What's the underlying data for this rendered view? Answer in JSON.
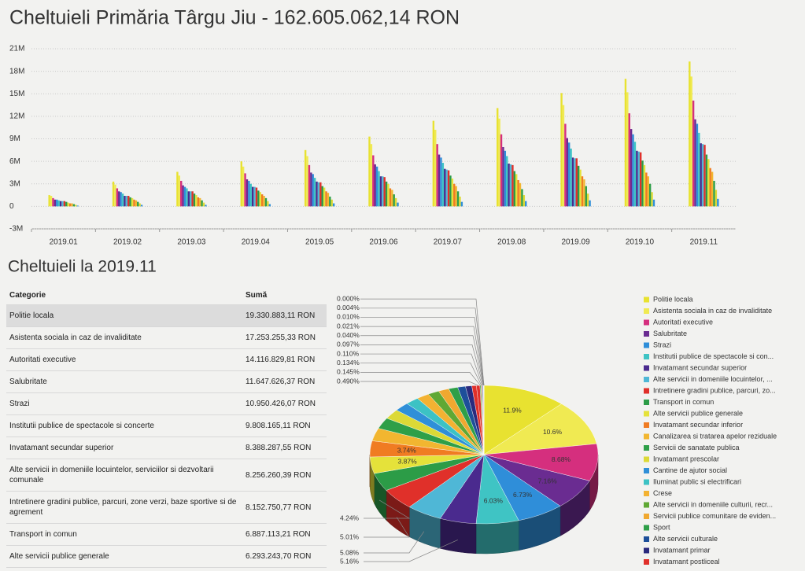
{
  "title": "Cheltuieli Primăria Târgu Jiu - 162.605.062,14 RON",
  "section_title": "Cheltuieli la 2019.11",
  "table": {
    "columns": [
      "Categorie",
      "Sumă"
    ],
    "rows": [
      [
        "Politie locala",
        "19.330.883,11 RON"
      ],
      [
        "Asistenta sociala in caz de invaliditate",
        "17.253.255,33 RON"
      ],
      [
        "Autoritati executive",
        "14.116.829,81 RON"
      ],
      [
        "Salubritate",
        "11.647.626,37 RON"
      ],
      [
        "Strazi",
        "10.950.426,07 RON"
      ],
      [
        "Institutii publice de spectacole si concerte",
        "9.808.165,11 RON"
      ],
      [
        "Invatamant secundar superior",
        "8.388.287,55 RON"
      ],
      [
        "Alte servicii in domeniile locuintelor, serviciilor si dezvoltarii comunale",
        "8.256.260,39 RON"
      ],
      [
        "Intretinere gradini publice, parcuri, zone verzi, baze sportive si de agrement",
        "8.152.750,77 RON"
      ],
      [
        "Transport in comun",
        "6.887.113,21 RON"
      ],
      [
        "Alte servicii publice generale",
        "6.293.243,70 RON"
      ]
    ]
  },
  "chart_data": [
    {
      "type": "bar",
      "categories": [
        "2019.01",
        "2019.02",
        "2019.03",
        "2019.04",
        "2019.05",
        "2019.06",
        "2019.07",
        "2019.08",
        "2019.09",
        "2019.10",
        "2019.11"
      ],
      "ylim": [
        -3000000.0,
        21000000.0
      ],
      "yticks": [
        {
          "value": -3000000.0,
          "label": "-3M"
        },
        0,
        {
          "value": 3000000.0,
          "label": "3M"
        },
        {
          "value": 6000000.0,
          "label": "6M"
        },
        {
          "value": 9000000.0,
          "label": "9M"
        },
        {
          "value": 12000000.0,
          "label": "12M"
        },
        {
          "value": 15000000.0,
          "label": "15M"
        },
        {
          "value": 18000000.0,
          "label": "18M"
        },
        {
          "value": 21000000.0,
          "label": "21M"
        }
      ],
      "grid": true,
      "series": [
        {
          "color": "#e8e230",
          "values": [
            1500000.0,
            3300000.0,
            4600000.0,
            6000000.0,
            7500000.0,
            9300000.0,
            11400000.0,
            13100000.0,
            15100000.0,
            17000000.0,
            19300000.0
          ]
        },
        {
          "color": "#f0ea52",
          "values": [
            1400000.0,
            2900000.0,
            4100000.0,
            5300000.0,
            6700000.0,
            8300000.0,
            10200000.0,
            11700000.0,
            13500000.0,
            15200000.0,
            17300000.0
          ]
        },
        {
          "color": "#d52f7e",
          "values": [
            1100000.0,
            2400000.0,
            3400000.0,
            4400000.0,
            5500000.0,
            6800000.0,
            8300000.0,
            9600000.0,
            11000000.0,
            12400000.0,
            14100000.0
          ]
        },
        {
          "color": "#6a2c91",
          "values": [
            900000.0,
            2000000.0,
            2800000.0,
            3600000.0,
            4500000.0,
            5600000.0,
            6900000.0,
            7900000.0,
            9100000.0,
            10300000.0,
            11600000.0
          ]
        },
        {
          "color": "#2f8ed9",
          "values": [
            900000.0,
            1900000.0,
            2600000.0,
            3400000.0,
            4300000.0,
            5300000.0,
            6500000.0,
            7400000.0,
            8500000.0,
            9600000.0,
            11000000.0
          ]
        },
        {
          "color": "#3fc4c4",
          "values": [
            800000.0,
            1700000.0,
            2400000.0,
            3000000.0,
            3800000.0,
            4700000.0,
            5800000.0,
            6700000.0,
            7700000.0,
            8600000.0,
            9800000.0
          ]
        },
        {
          "color": "#4a2a8e",
          "values": [
            700000.0,
            1400000.0,
            2000000.0,
            2600000.0,
            3300000.0,
            4000000.0,
            5000000.0,
            5700000.0,
            6500000.0,
            7400000.0,
            8400000.0
          ]
        },
        {
          "color": "#4fb7d6",
          "values": [
            700000.0,
            1400000.0,
            2000000.0,
            2600000.0,
            3200000.0,
            4000000.0,
            4900000.0,
            5600000.0,
            6400000.0,
            7300000.0,
            8300000.0
          ]
        },
        {
          "color": "#e0302a",
          "values": [
            700000.0,
            1400000.0,
            2000000.0,
            2500000.0,
            3200000.0,
            3900000.0,
            4800000.0,
            5500000.0,
            6400000.0,
            7200000.0,
            8200000.0
          ]
        },
        {
          "color": "#2c9c47",
          "values": [
            600000.0,
            1200000.0,
            1700000.0,
            2100000.0,
            2700000.0,
            3300000.0,
            4100000.0,
            4700000.0,
            5400000.0,
            6100000.0,
            6900000.0
          ]
        },
        {
          "color": "#e5e23a",
          "values": [
            500000.0,
            1100000.0,
            1500000.0,
            1900000.0,
            2500000.0,
            3000000.0,
            3700000.0,
            4300000.0,
            4900000.0,
            5500000.0,
            6300000.0
          ]
        },
        {
          "color": "#f07c22",
          "values": [
            400000.0,
            900000.0,
            1200000.0,
            1600000.0,
            2000000.0,
            2400000.0,
            3000000.0,
            3500000.0,
            4000000.0,
            4500000.0,
            5100000.0
          ]
        },
        {
          "color": "#f2b630",
          "values": [
            400000.0,
            800000.0,
            1100000.0,
            1400000.0,
            1800000.0,
            2200000.0,
            2700000.0,
            3100000.0,
            3600000.0,
            4000000.0,
            4600000.0
          ]
        },
        {
          "color": "#2e9f48",
          "values": [
            300000.0,
            600000.0,
            800000.0,
            1100000.0,
            1300000.0,
            1600000.0,
            2000000.0,
            2300000.0,
            2700000.0,
            3000000.0,
            3400000.0
          ]
        },
        {
          "color": "#dcd936",
          "values": [
            200000.0,
            400000.0,
            500000.0,
            700000.0,
            900000.0,
            1100000.0,
            1300000.0,
            1500000.0,
            1700000.0,
            1900000.0,
            2200000.0
          ]
        },
        {
          "color": "#2f8fd8",
          "values": [
            100000.0,
            200000.0,
            200000.0,
            300000.0,
            400000.0,
            500000.0,
            600000.0,
            700000.0,
            800000.0,
            900000.0,
            1000000.0
          ]
        }
      ]
    },
    {
      "type": "pie",
      "categories": [
        "Politie locala",
        "Asistenta sociala in caz de invaliditate",
        "Autoritati executive",
        "Salubritate",
        "Strazi",
        "Institutii publice de spectacole si con...",
        "Invatamant secundar superior",
        "Alte servicii in domeniile locuintelor, ...",
        "Intretinere gradini publice, parcuri, zo...",
        "Transport in comun",
        "Alte servicii publice generale",
        "Invatamant secundar inferior",
        "Canalizarea si tratarea apelor reziduale",
        "Servicii de sanatate publica",
        "Invatamant prescolar",
        "Cantine de ajutor social",
        "Iluminat public si electrificari",
        "Crese",
        "Alte servicii in domeniile culturii, recr...",
        "Servicii publice comunitare de eviden...",
        "Sport",
        "Alte servicii culturale",
        "Invatamant primar",
        "Invatamant postliceal",
        null,
        null,
        null,
        null,
        null,
        null,
        null,
        null,
        null,
        null
      ],
      "values": [
        11.9,
        10.6,
        8.68,
        7.16,
        6.73,
        6.03,
        5.16,
        5.08,
        5.01,
        4.24,
        3.87,
        3.74,
        3.0,
        2.6,
        2.3,
        2.1,
        1.9,
        1.8,
        1.6,
        1.5,
        1.3,
        1.1,
        0.9,
        0.65,
        0.49,
        0.145,
        0.134,
        0.11,
        0.097,
        0.04,
        0.021,
        0.01,
        0.004,
        0
      ],
      "value_labels": [
        "11.9%",
        "10.6%",
        "8.68%",
        "7.16%",
        "6.73%",
        "6.03%",
        "5.16%",
        "5.08%",
        "5.01%",
        "4.24%",
        "3.87%",
        "3.74%",
        null,
        null,
        null,
        null,
        null,
        null,
        null,
        null,
        null,
        null,
        null,
        null,
        "0.490%",
        "0.145%",
        "0.134%",
        "0.110%",
        "0.097%",
        "0.040%",
        "0.021%",
        "0.010%",
        "0.004%",
        "0.000%"
      ],
      "colors": [
        "#e8e230",
        "#f0ea52",
        "#d52f7e",
        "#6a2c91",
        "#2f8ed9",
        "#3fc4c4",
        "#4a2a8e",
        "#4fb7d6",
        "#e0302a",
        "#2c9c47",
        "#e5e23a",
        "#f07c22",
        "#f2b630",
        "#2e9f48",
        "#dcd936",
        "#2f8fd8",
        "#3cc2c4",
        "#f3b232",
        "#5fa834",
        "#f0a830",
        "#2e9f48",
        "#1d4f9a",
        "#2a2a7e",
        "#e0302a",
        "#e0302a",
        "#2e9f48",
        "#f07c22",
        "#2f8fd8",
        "#6a2c91",
        "#3fc4c4",
        "#e8e230",
        "#d52f7e",
        "#1d4f9a",
        "#5fa834"
      ]
    }
  ]
}
